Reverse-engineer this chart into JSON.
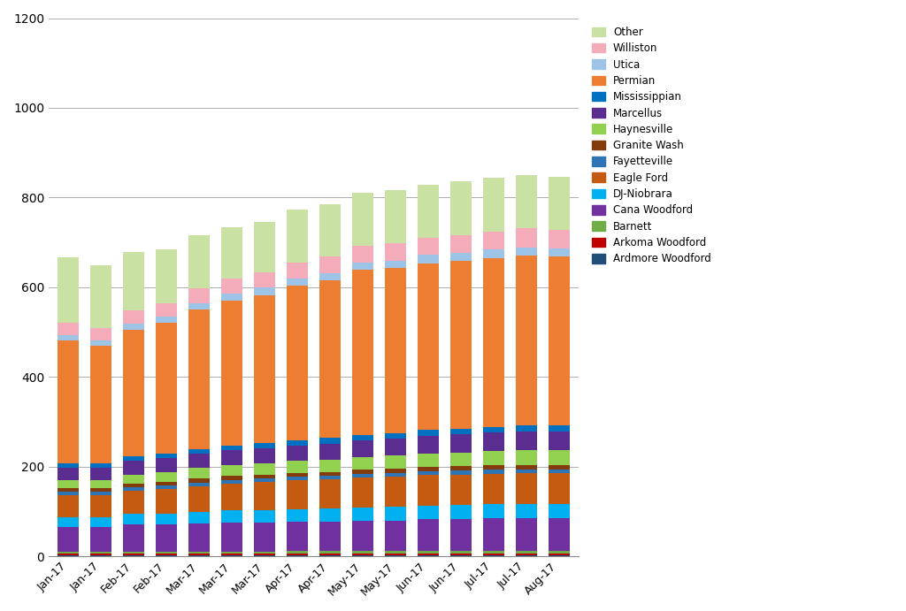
{
  "categories": [
    "Jan-17",
    "Jan-17",
    "Feb-17",
    "Feb-17",
    "Mar-17",
    "Mar-17",
    "Mar-17",
    "Apr-17",
    "Apr-17",
    "May-17",
    "May-17",
    "Jun-17",
    "Jun-17",
    "Jul-17",
    "Jul-17",
    "Aug-17"
  ],
  "series_order": [
    "Ardmore Woodford",
    "Arkoma Woodford",
    "Barnett",
    "Cana Woodford",
    "DJ-Niobrara",
    "Eagle Ford",
    "Fayetteville",
    "Granite Wash",
    "Haynesville",
    "Marcellus",
    "Mississippian",
    "Permian",
    "Utica",
    "Williston",
    "Other"
  ],
  "series_data": {
    "Ardmore Woodford": [
      2,
      2,
      2,
      2,
      2,
      2,
      2,
      2,
      2,
      2,
      2,
      2,
      2,
      2,
      2,
      2
    ],
    "Arkoma Woodford": [
      4,
      4,
      4,
      4,
      4,
      4,
      4,
      5,
      5,
      5,
      5,
      5,
      5,
      5,
      5,
      5
    ],
    "Barnett": [
      5,
      5,
      5,
      5,
      5,
      5,
      5,
      5,
      5,
      5,
      5,
      6,
      6,
      6,
      6,
      6
    ],
    "Cana Woodford": [
      55,
      55,
      60,
      60,
      62,
      65,
      65,
      66,
      66,
      68,
      68,
      70,
      70,
      72,
      72,
      72
    ],
    "DJ-Niobrara": [
      22,
      22,
      24,
      25,
      26,
      27,
      28,
      28,
      29,
      30,
      31,
      31,
      32,
      32,
      33,
      33
    ],
    "Eagle Ford": [
      48,
      48,
      52,
      55,
      58,
      60,
      62,
      64,
      65,
      66,
      67,
      68,
      68,
      68,
      68,
      68
    ],
    "Fayetteville": [
      8,
      8,
      8,
      8,
      8,
      8,
      8,
      8,
      8,
      8,
      8,
      8,
      8,
      8,
      8,
      8
    ],
    "Granite Wash": [
      8,
      8,
      8,
      8,
      9,
      9,
      9,
      9,
      9,
      10,
      10,
      10,
      10,
      10,
      10,
      10
    ],
    "Haynesville": [
      18,
      18,
      20,
      22,
      23,
      24,
      25,
      26,
      27,
      28,
      29,
      30,
      31,
      32,
      33,
      33
    ],
    "Marcellus": [
      28,
      28,
      30,
      30,
      32,
      33,
      34,
      35,
      36,
      37,
      38,
      39,
      40,
      41,
      42,
      42
    ],
    "Mississippian": [
      10,
      10,
      10,
      10,
      11,
      11,
      11,
      11,
      12,
      12,
      12,
      13,
      13,
      13,
      13,
      13
    ],
    "Permian": [
      274,
      262,
      282,
      292,
      310,
      322,
      330,
      345,
      352,
      368,
      368,
      372,
      374,
      376,
      378,
      376
    ],
    "Utica": [
      12,
      12,
      14,
      14,
      15,
      16,
      16,
      16,
      16,
      17,
      17,
      18,
      18,
      19,
      19,
      19
    ],
    "Williston": [
      28,
      28,
      30,
      30,
      32,
      33,
      34,
      35,
      36,
      37,
      38,
      39,
      40,
      41,
      42,
      42
    ],
    "Other": [
      145,
      140,
      130,
      120,
      120,
      115,
      112,
      118,
      118,
      118,
      118,
      118,
      120,
      120,
      120,
      118
    ]
  },
  "colors": {
    "Ardmore Woodford": "#1F4E79",
    "Arkoma Woodford": "#843C0C",
    "Barnett": "#70AD47",
    "Cana Woodford": "#7030A0",
    "DJ-Niobrara": "#00B0F0",
    "Eagle Ford": "#C55A11",
    "Fayetteville": "#2E75B6",
    "Granite Wash": "#843C0C",
    "Haynesville": "#92D050",
    "Marcellus": "#7030A0",
    "Mississippian": "#00B0F0",
    "Permian": "#ED7D31",
    "Utica": "#9DC3E6",
    "Williston": "#F4ACBA",
    "Other": "#C9E2A3"
  },
  "ylim": [
    0,
    1200
  ],
  "yticks": [
    0,
    200,
    400,
    600,
    800,
    1000,
    1200
  ],
  "figsize": [
    10.24,
    6.91
  ],
  "dpi": 100
}
